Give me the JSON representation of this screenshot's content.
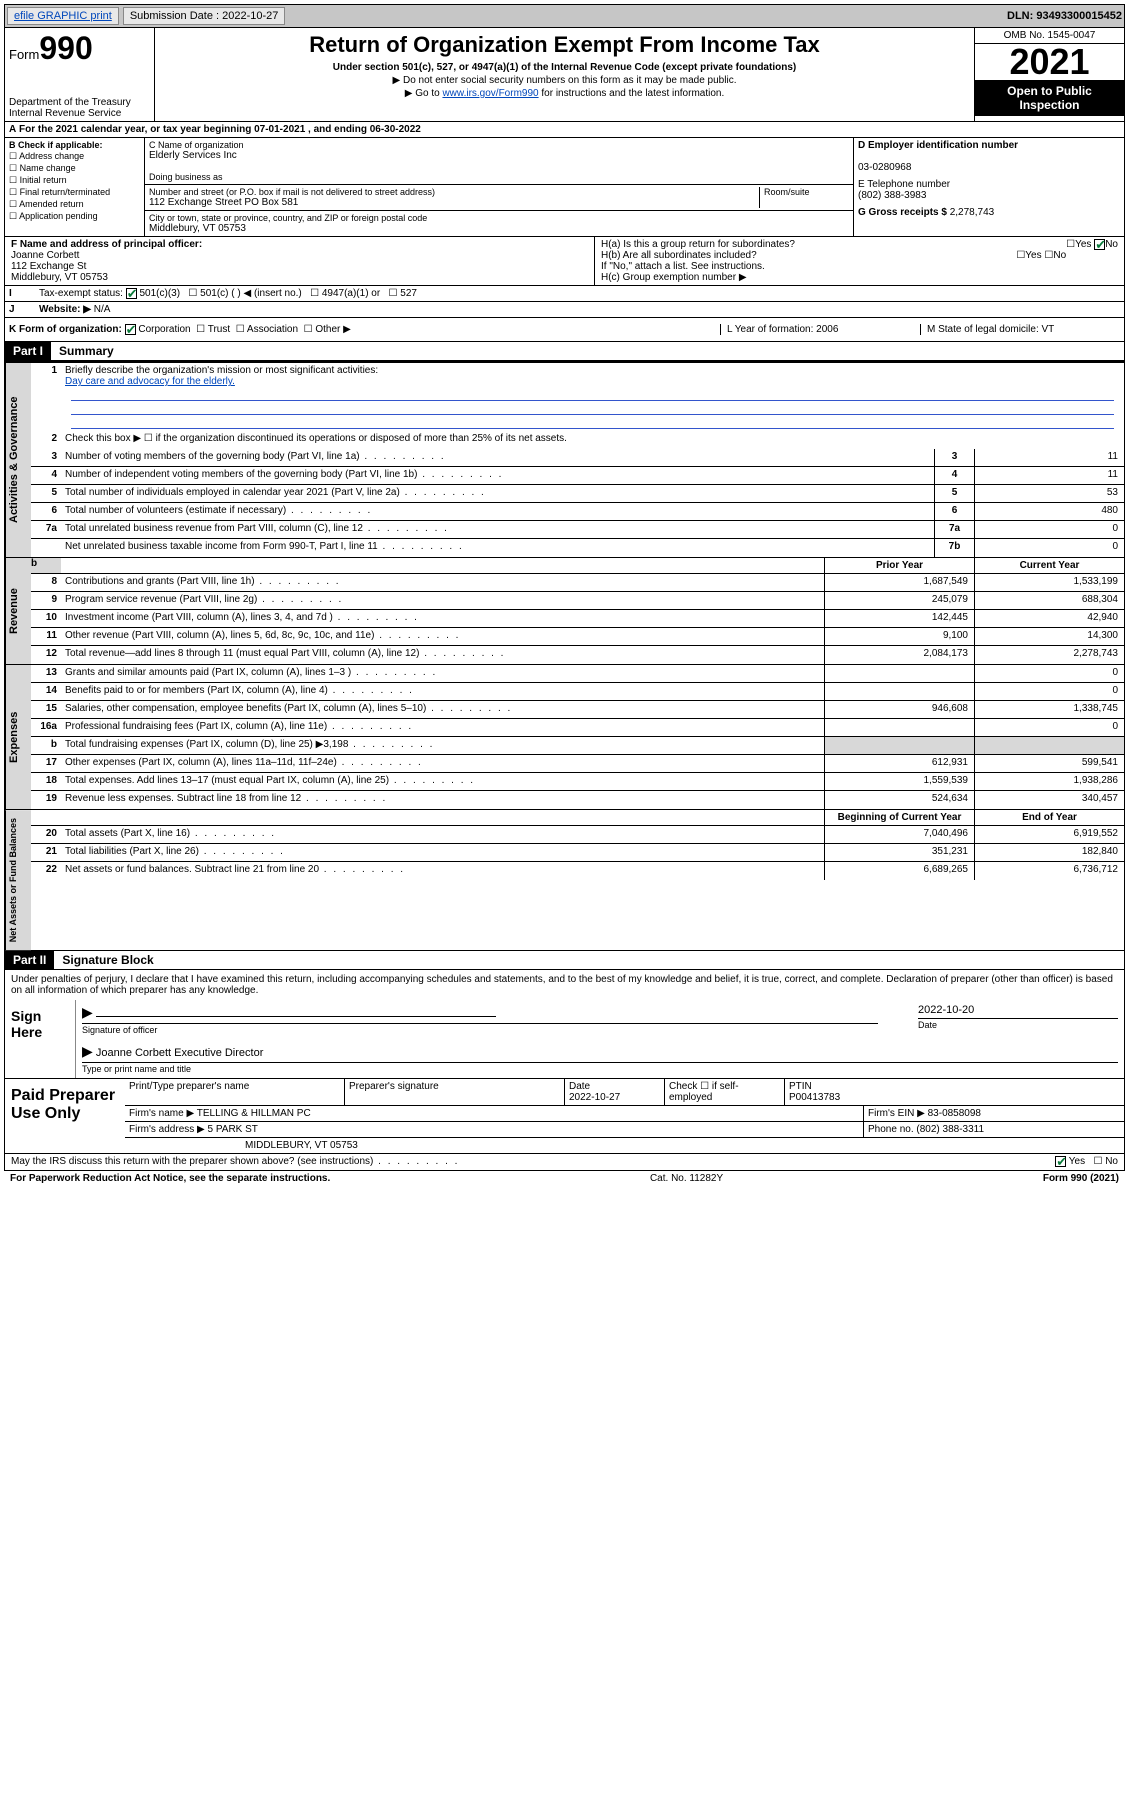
{
  "topbar": {
    "efile": "efile GRAPHIC print",
    "subdate_label": "Submission Date : 2022-10-27",
    "dln_label": "DLN: 93493300015452"
  },
  "header": {
    "form_label": "Form",
    "form_no": "990",
    "dept": "Department of the Treasury",
    "irs": "Internal Revenue Service",
    "title": "Return of Organization Exempt From Income Tax",
    "sub1": "Under section 501(c), 527, or 4947(a)(1) of the Internal Revenue Code (except private foundations)",
    "sub2": "▶ Do not enter social security numbers on this form as it may be made public.",
    "sub3_pre": "▶ Go to ",
    "sub3_link": "www.irs.gov/Form990",
    "sub3_post": " for instructions and the latest information.",
    "omb": "OMB No. 1545-0047",
    "year": "2021",
    "open": "Open to Public Inspection"
  },
  "line_a": "For the 2021 calendar year, or tax year beginning 07-01-2021   , and ending 06-30-2022",
  "box_b": {
    "label": "B Check if applicable:",
    "items": [
      "Address change",
      "Name change",
      "Initial return",
      "Final return/terminated",
      "Amended return",
      "Application pending"
    ]
  },
  "box_c": {
    "name_label": "C Name of organization",
    "name": "Elderly Services Inc",
    "dba_label": "Doing business as",
    "addr_label": "Number and street (or P.O. box if mail is not delivered to street address)",
    "room_label": "Room/suite",
    "addr": "112 Exchange Street PO Box 581",
    "city_label": "City or town, state or province, country, and ZIP or foreign postal code",
    "city": "Middlebury, VT  05753"
  },
  "box_d": {
    "ein_label": "D Employer identification number",
    "ein": "03-0280968",
    "tel_label": "E Telephone number",
    "tel": "(802) 388-3983",
    "gross_label": "G Gross receipts $",
    "gross": "2,278,743"
  },
  "box_f": {
    "label": "F Name and address of principal officer:",
    "name": "Joanne Corbett",
    "addr1": "112 Exchange St",
    "addr2": "Middlebury, VT  05753"
  },
  "box_h": {
    "a": "H(a)  Is this a group return for subordinates?",
    "b": "H(b)  Are all subordinates included?",
    "note": "If \"No,\" attach a list. See instructions.",
    "c": "H(c)  Group exemption number ▶"
  },
  "row_i": {
    "label": "Tax-exempt status:",
    "c3": "501(c)(3)",
    "c": "501(c) (  ) ◀ (insert no.)",
    "a1": "4947(a)(1) or",
    "s527": "527"
  },
  "row_j": {
    "label": "Website: ▶",
    "val": "N/A"
  },
  "row_k": {
    "label": "K Form of organization:",
    "corp": "Corporation",
    "trust": "Trust",
    "assoc": "Association",
    "other": "Other ▶",
    "l": "L Year of formation: 2006",
    "m": "M State of legal domicile: VT"
  },
  "part1": {
    "hdr": "Part I",
    "title": "Summary"
  },
  "governance": {
    "label": "Activities & Governance",
    "l1": "Briefly describe the organization's mission or most significant activities:",
    "l1_link": "Day care and advocacy for the elderly.",
    "l2": "Check this box ▶ ☐  if the organization discontinued its operations or disposed of more than 25% of its net assets.",
    "rows": [
      {
        "n": "3",
        "d": "Number of voting members of the governing body (Part VI, line 1a)",
        "box": "3",
        "v": "11"
      },
      {
        "n": "4",
        "d": "Number of independent voting members of the governing body (Part VI, line 1b)",
        "box": "4",
        "v": "11"
      },
      {
        "n": "5",
        "d": "Total number of individuals employed in calendar year 2021 (Part V, line 2a)",
        "box": "5",
        "v": "53"
      },
      {
        "n": "6",
        "d": "Total number of volunteers (estimate if necessary)",
        "box": "6",
        "v": "480"
      },
      {
        "n": "7a",
        "d": "Total unrelated business revenue from Part VIII, column (C), line 12",
        "box": "7a",
        "v": "0"
      },
      {
        "n": "",
        "d": "Net unrelated business taxable income from Form 990-T, Part I, line 11",
        "box": "7b",
        "v": "0"
      }
    ]
  },
  "col_hdr": {
    "prior": "Prior Year",
    "current": "Current Year",
    "boy": "Beginning of Current Year",
    "eoy": "End of Year"
  },
  "revenue": {
    "label": "Revenue",
    "rows": [
      {
        "n": "8",
        "d": "Contributions and grants (Part VIII, line 1h)",
        "py": "1,687,549",
        "cy": "1,533,199"
      },
      {
        "n": "9",
        "d": "Program service revenue (Part VIII, line 2g)",
        "py": "245,079",
        "cy": "688,304"
      },
      {
        "n": "10",
        "d": "Investment income (Part VIII, column (A), lines 3, 4, and 7d )",
        "py": "142,445",
        "cy": "42,940"
      },
      {
        "n": "11",
        "d": "Other revenue (Part VIII, column (A), lines 5, 6d, 8c, 9c, 10c, and 11e)",
        "py": "9,100",
        "cy": "14,300"
      },
      {
        "n": "12",
        "d": "Total revenue—add lines 8 through 11 (must equal Part VIII, column (A), line 12)",
        "py": "2,084,173",
        "cy": "2,278,743"
      }
    ]
  },
  "expenses": {
    "label": "Expenses",
    "rows": [
      {
        "n": "13",
        "d": "Grants and similar amounts paid (Part IX, column (A), lines 1–3 )",
        "py": "",
        "cy": "0"
      },
      {
        "n": "14",
        "d": "Benefits paid to or for members (Part IX, column (A), line 4)",
        "py": "",
        "cy": "0"
      },
      {
        "n": "15",
        "d": "Salaries, other compensation, employee benefits (Part IX, column (A), lines 5–10)",
        "py": "946,608",
        "cy": "1,338,745"
      },
      {
        "n": "16a",
        "d": "Professional fundraising fees (Part IX, column (A), line 11e)",
        "py": "",
        "cy": "0"
      },
      {
        "n": "b",
        "d": "Total fundraising expenses (Part IX, column (D), line 25) ▶3,198",
        "py": "BLANK",
        "cy": "BLANK"
      },
      {
        "n": "17",
        "d": "Other expenses (Part IX, column (A), lines 11a–11d, 11f–24e)",
        "py": "612,931",
        "cy": "599,541"
      },
      {
        "n": "18",
        "d": "Total expenses. Add lines 13–17 (must equal Part IX, column (A), line 25)",
        "py": "1,559,539",
        "cy": "1,938,286"
      },
      {
        "n": "19",
        "d": "Revenue less expenses. Subtract line 18 from line 12",
        "py": "524,634",
        "cy": "340,457"
      }
    ]
  },
  "netassets": {
    "label": "Net Assets or Fund Balances",
    "rows": [
      {
        "n": "20",
        "d": "Total assets (Part X, line 16)",
        "py": "7,040,496",
        "cy": "6,919,552"
      },
      {
        "n": "21",
        "d": "Total liabilities (Part X, line 26)",
        "py": "351,231",
        "cy": "182,840"
      },
      {
        "n": "22",
        "d": "Net assets or fund balances. Subtract line 21 from line 20",
        "py": "6,689,265",
        "cy": "6,736,712"
      }
    ]
  },
  "part2": {
    "hdr": "Part II",
    "title": "Signature Block"
  },
  "sig": {
    "decl": "Under penalties of perjury, I declare that I have examined this return, including accompanying schedules and statements, and to the best of my knowledge and belief, it is true, correct, and complete. Declaration of preparer (other than officer) is based on all information of which preparer has any knowledge.",
    "sign_here": "Sign Here",
    "sig_officer": "Signature of officer",
    "date": "2022-10-20",
    "date_label": "Date",
    "name_title": "Joanne Corbett  Executive Director",
    "name_title_label": "Type or print name and title"
  },
  "prep": {
    "label": "Paid Preparer Use Only",
    "h1": "Print/Type preparer's name",
    "h2": "Preparer's signature",
    "h3": "Date",
    "h3v": "2022-10-27",
    "h4": "Check ☐ if self-employed",
    "h5": "PTIN",
    "h5v": "P00413783",
    "firm_name_l": "Firm's name    ▶",
    "firm_name": "TELLING & HILLMAN PC",
    "firm_ein_l": "Firm's EIN ▶",
    "firm_ein": "83-0858098",
    "firm_addr_l": "Firm's address ▶",
    "firm_addr1": "5 PARK ST",
    "firm_addr2": "MIDDLEBURY, VT  05753",
    "phone_l": "Phone no.",
    "phone": "(802) 388-3311"
  },
  "discuss": {
    "q": "May the IRS discuss this return with the preparer shown above? (see instructions)",
    "yes": "Yes",
    "no": "No"
  },
  "footer": {
    "pra": "For Paperwork Reduction Act Notice, see the separate instructions.",
    "cat": "Cat. No. 11282Y",
    "form": "Form 990 (2021)"
  }
}
